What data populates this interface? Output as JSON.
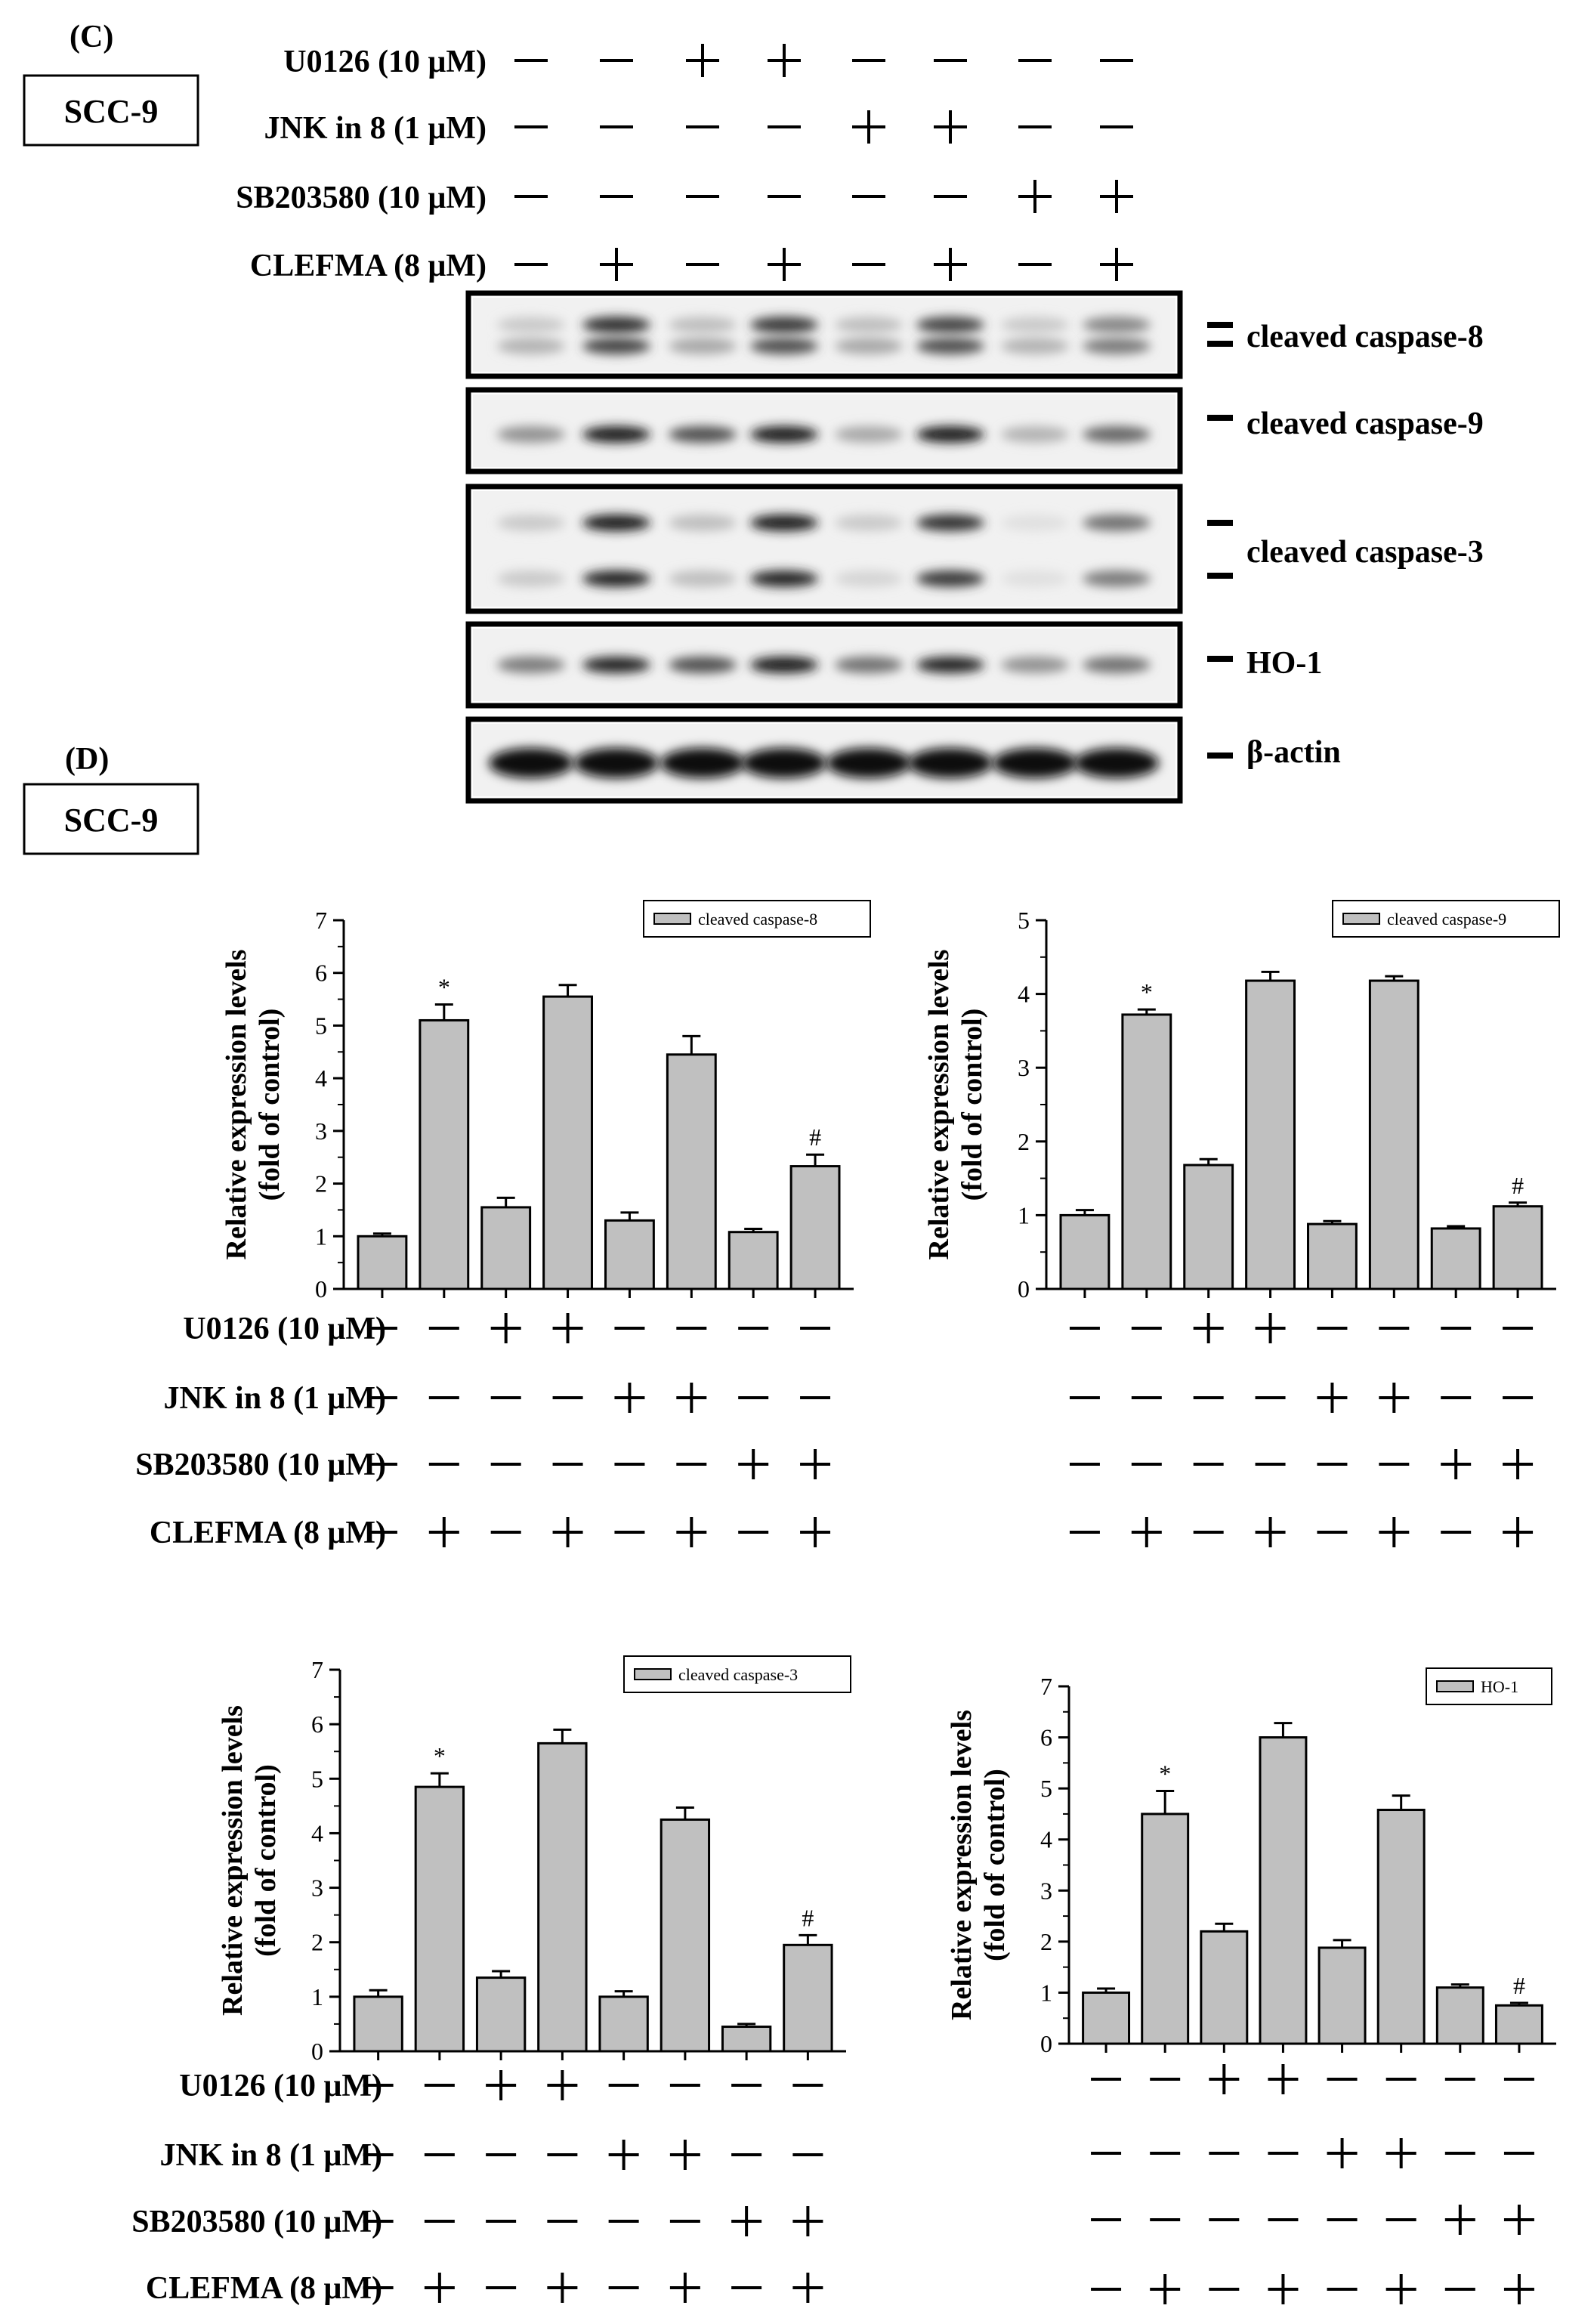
{
  "panel_c": {
    "letter": "(C)",
    "cell_line": "SCC-9",
    "treatments": [
      {
        "label": "U0126 (10 μM)",
        "signs": [
          "−",
          "−",
          "+",
          "+",
          "−",
          "−",
          "−",
          "−"
        ]
      },
      {
        "label": "JNK in 8 (1 μM)",
        "signs": [
          "−",
          "−",
          "−",
          "−",
          "+",
          "+",
          "−",
          "−"
        ]
      },
      {
        "label": "SB203580 (10 μM)",
        "signs": [
          "−",
          "−",
          "−",
          "−",
          "−",
          "−",
          "+",
          "+"
        ]
      },
      {
        "label": "CLEFMA (8 μM)",
        "signs": [
          "−",
          "+",
          "−",
          "+",
          "−",
          "+",
          "−",
          "+"
        ]
      }
    ],
    "blots": [
      {
        "label": "cleaved caspase-8",
        "bands": [
          2,
          2
        ],
        "intensity": [
          [
            0.15,
            0.85,
            0.2,
            0.8,
            0.2,
            0.75,
            0.15,
            0.45
          ],
          [
            0.25,
            0.75,
            0.3,
            0.7,
            0.3,
            0.7,
            0.25,
            0.5
          ]
        ]
      },
      {
        "label": "cleaved caspase-9",
        "bands": [
          1
        ],
        "intensity": [
          [
            0.4,
            0.95,
            0.7,
            0.95,
            0.3,
            0.95,
            0.25,
            0.6
          ]
        ]
      },
      {
        "label": "cleaved caspase-3",
        "bands": [
          1,
          1
        ],
        "intensity": [
          [
            0.15,
            0.95,
            0.2,
            0.95,
            0.15,
            0.85,
            0.05,
            0.55
          ],
          [
            0.15,
            0.9,
            0.2,
            0.9,
            0.1,
            0.8,
            0.05,
            0.5
          ]
        ]
      },
      {
        "label": "HO-1",
        "bands": [
          1
        ],
        "intensity": [
          [
            0.5,
            0.9,
            0.7,
            0.95,
            0.55,
            0.9,
            0.4,
            0.55
          ]
        ]
      },
      {
        "label": "β-actin",
        "bands": [
          1
        ],
        "intensity": [
          [
            1.0,
            1.0,
            1.0,
            1.0,
            1.0,
            1.0,
            1.0,
            1.0
          ]
        ]
      }
    ]
  },
  "panel_d": {
    "letter": "(D)",
    "cell_line": "SCC-9"
  },
  "colors": {
    "bar_fill": "#c0c0c0",
    "ink": "#000000"
  },
  "chart_data": [
    {
      "type": "bar",
      "legend": "cleaved caspase-8",
      "legend_position": "top-right",
      "ylabel": [
        "Relative expression levels",
        "(fold of control)"
      ],
      "ylim": [
        0,
        7
      ],
      "yticks": [
        0,
        1,
        2,
        3,
        4,
        5,
        6,
        7
      ],
      "values": [
        1.0,
        5.1,
        1.55,
        5.55,
        1.3,
        4.45,
        1.08,
        2.33
      ],
      "errors": [
        0.05,
        0.3,
        0.18,
        0.22,
        0.15,
        0.35,
        0.06,
        0.22
      ],
      "annotations": [
        "",
        "*",
        "",
        "",
        "",
        "",
        "",
        "#"
      ],
      "grid": false,
      "treatments": [
        {
          "label": "U0126 (10 μM)",
          "signs": [
            "−",
            "−",
            "+",
            "+",
            "−",
            "−",
            "−",
            "−"
          ]
        },
        {
          "label": "JNK in 8 (1 μM)",
          "signs": [
            "−",
            "−",
            "−",
            "−",
            "+",
            "+",
            "−",
            "−"
          ]
        },
        {
          "label": "SB203580 (10 μM)",
          "signs": [
            "−",
            "−",
            "−",
            "−",
            "−",
            "−",
            "+",
            "+"
          ]
        },
        {
          "label": "CLEFMA (8 μM)",
          "signs": [
            "−",
            "+",
            "−",
            "+",
            "−",
            "+",
            "−",
            "+"
          ]
        }
      ]
    },
    {
      "type": "bar",
      "legend": "cleaved caspase-9",
      "legend_position": "top-right",
      "ylabel": [
        "Relative expression levels",
        "(fold of control)"
      ],
      "ylim": [
        0,
        5
      ],
      "yticks": [
        0,
        1,
        2,
        3,
        4,
        5
      ],
      "values": [
        1.0,
        3.72,
        1.68,
        4.18,
        0.88,
        4.18,
        0.82,
        1.12
      ],
      "errors": [
        0.07,
        0.07,
        0.08,
        0.12,
        0.04,
        0.06,
        0.03,
        0.05
      ],
      "annotations": [
        "",
        "*",
        "",
        "",
        "",
        "",
        "",
        "#"
      ],
      "grid": false,
      "treatments": [
        {
          "label": "",
          "signs": [
            "−",
            "−",
            "+",
            "+",
            "−",
            "−",
            "−",
            "−"
          ]
        },
        {
          "label": "",
          "signs": [
            "−",
            "−",
            "−",
            "−",
            "+",
            "+",
            "−",
            "−"
          ]
        },
        {
          "label": "",
          "signs": [
            "−",
            "−",
            "−",
            "−",
            "−",
            "−",
            "+",
            "+"
          ]
        },
        {
          "label": "",
          "signs": [
            "−",
            "+",
            "−",
            "+",
            "−",
            "+",
            "−",
            "+"
          ]
        }
      ]
    },
    {
      "type": "bar",
      "legend": "cleaved caspase-3",
      "legend_position": "top-right",
      "ylabel": [
        "Relative expression levels",
        "(fold of control)"
      ],
      "ylim": [
        0,
        7
      ],
      "yticks": [
        0,
        1,
        2,
        3,
        4,
        5,
        6,
        7
      ],
      "values": [
        1.0,
        4.85,
        1.35,
        5.65,
        1.0,
        4.25,
        0.45,
        1.95
      ],
      "errors": [
        0.12,
        0.25,
        0.12,
        0.25,
        0.1,
        0.22,
        0.05,
        0.18
      ],
      "annotations": [
        "",
        "*",
        "",
        "",
        "",
        "",
        "",
        "#"
      ],
      "grid": false,
      "treatments": [
        {
          "label": "U0126 (10 μM)",
          "signs": [
            "−",
            "−",
            "+",
            "+",
            "−",
            "−",
            "−",
            "−"
          ]
        },
        {
          "label": "JNK in 8 (1 μM)",
          "signs": [
            "−",
            "−",
            "−",
            "−",
            "+",
            "+",
            "−",
            "−"
          ]
        },
        {
          "label": "SB203580 (10 μM)",
          "signs": [
            "−",
            "−",
            "−",
            "−",
            "−",
            "−",
            "+",
            "+"
          ]
        },
        {
          "label": "CLEFMA (8 μM)",
          "signs": [
            "−",
            "+",
            "−",
            "+",
            "−",
            "+",
            "−",
            "+"
          ]
        }
      ]
    },
    {
      "type": "bar",
      "legend": "HO-1",
      "legend_position": "top-right",
      "ylabel": [
        "Relative expression levels",
        "(fold of control)"
      ],
      "ylim": [
        0,
        7
      ],
      "yticks": [
        0,
        1,
        2,
        3,
        4,
        5,
        6,
        7
      ],
      "values": [
        1.0,
        4.5,
        2.2,
        6.0,
        1.88,
        4.58,
        1.1,
        0.75
      ],
      "errors": [
        0.08,
        0.45,
        0.15,
        0.28,
        0.15,
        0.28,
        0.06,
        0.05
      ],
      "annotations": [
        "",
        "*",
        "",
        "",
        "",
        "",
        "",
        "#"
      ],
      "grid": false,
      "treatments": [
        {
          "label": "",
          "signs": [
            "−",
            "−",
            "+",
            "+",
            "−",
            "−",
            "−",
            "−"
          ]
        },
        {
          "label": "",
          "signs": [
            "−",
            "−",
            "−",
            "−",
            "+",
            "+",
            "−",
            "−"
          ]
        },
        {
          "label": "",
          "signs": [
            "−",
            "−",
            "−",
            "−",
            "−",
            "−",
            "+",
            "+"
          ]
        },
        {
          "label": "",
          "signs": [
            "−",
            "+",
            "−",
            "+",
            "−",
            "+",
            "−",
            "+"
          ]
        }
      ]
    }
  ]
}
